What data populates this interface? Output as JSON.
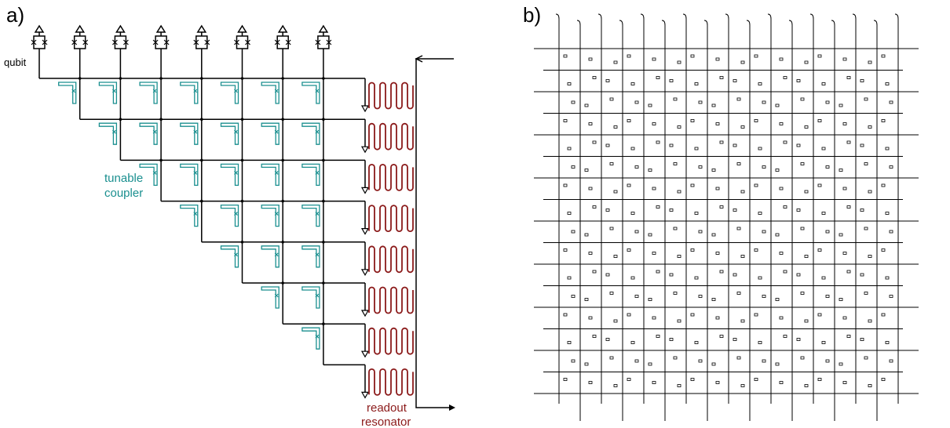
{
  "panel_a": {
    "label": "a)",
    "qubit_label": "qubit",
    "coupler_label": [
      "tunable",
      "coupler"
    ],
    "resonator_label": [
      "readout",
      "resonator"
    ]
  },
  "panel_b": {
    "label": "b)"
  }
}
